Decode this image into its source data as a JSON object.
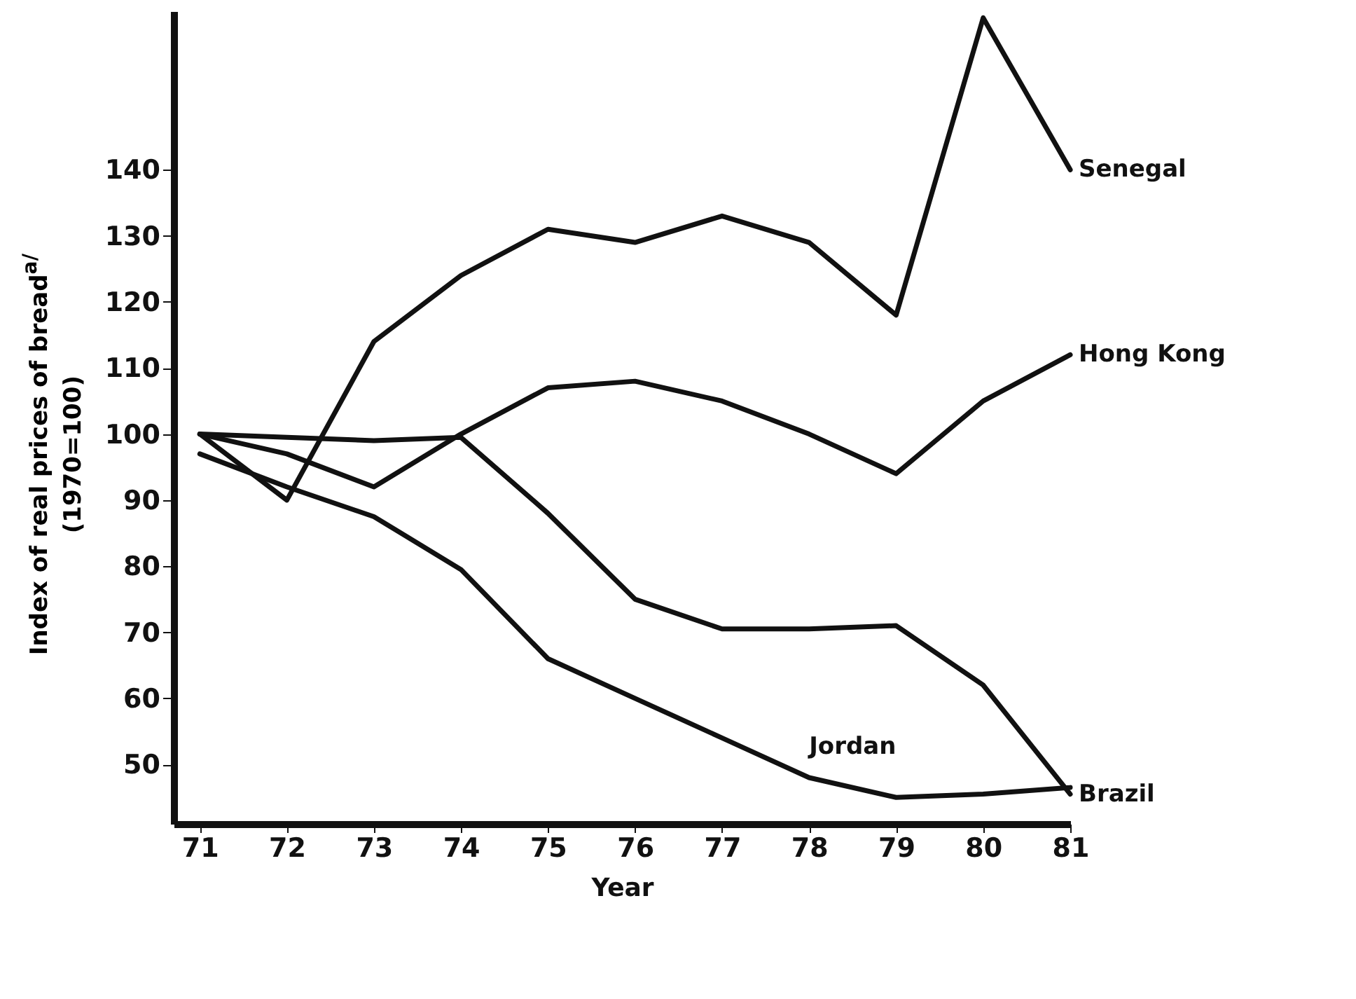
{
  "chart_data": {
    "type": "line",
    "xlabel": "Year",
    "ylabel": "Index of real prices of bread$^{a/}$\n(1970=100)",
    "x": [
      71,
      72,
      73,
      74,
      75,
      76,
      77,
      78,
      79,
      80,
      81
    ],
    "xlim": [
      70.7,
      81
    ],
    "xticks": [
      71,
      72,
      73,
      74,
      75,
      76,
      77,
      78,
      79,
      80,
      81
    ],
    "ylim": [
      41,
      164
    ],
    "yticks": [
      50,
      60,
      70,
      80,
      90,
      100,
      110,
      120,
      130,
      140
    ],
    "grid": false,
    "marker": "none",
    "line_style": "solid",
    "series": [
      {
        "name": "Senegal",
        "color": "#111111",
        "values": [
          100,
          90,
          114,
          124,
          131,
          129,
          133,
          129,
          118,
          163,
          140
        ]
      },
      {
        "name": "Hong Kong",
        "color": "#111111",
        "values": [
          100,
          97,
          92,
          100,
          107,
          108,
          105,
          100,
          94,
          105,
          112
        ]
      },
      {
        "name": "Brazil",
        "color": "#111111",
        "values": [
          100,
          99.5,
          99,
          99.5,
          88,
          75,
          70.5,
          70.5,
          71,
          62,
          45.5
        ]
      },
      {
        "name": "Jordan",
        "color": "#111111",
        "values": [
          97,
          92,
          87.5,
          79.5,
          66,
          60,
          54,
          48,
          45,
          45.5,
          46.5
        ]
      }
    ]
  }
}
